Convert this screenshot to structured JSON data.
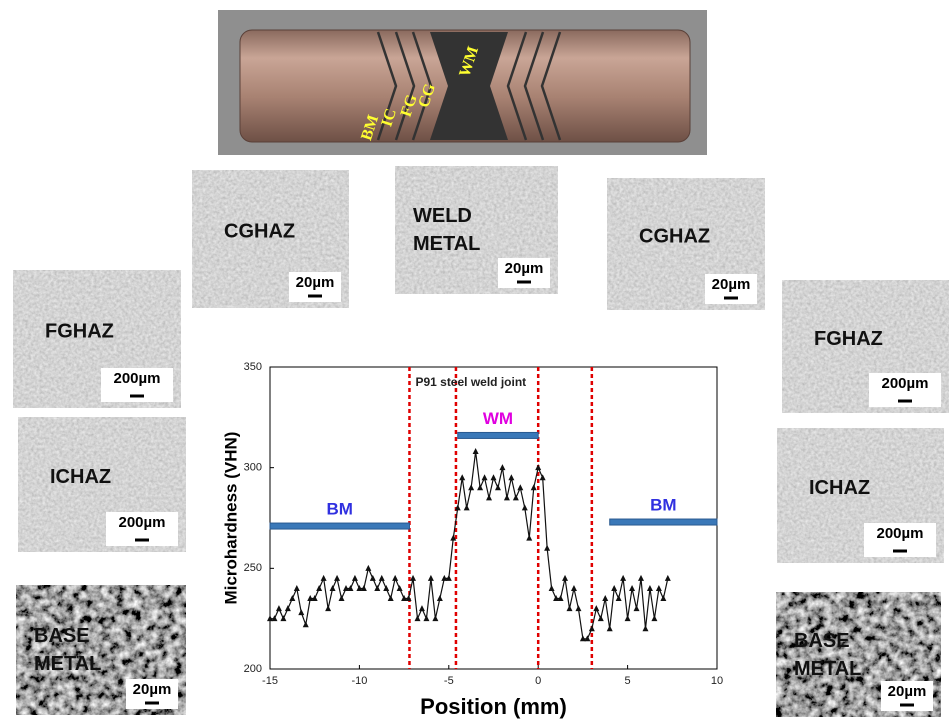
{
  "diagram": {
    "labels": [
      "BM",
      "IC",
      "FG",
      "CG",
      "WM"
    ]
  },
  "panels": [
    {
      "label": "CGHAZ",
      "scale": "20µm"
    },
    {
      "label": "WELD METAL",
      "scale": "20µm"
    },
    {
      "label": "CGHAZ",
      "scale": "20µm"
    },
    {
      "label": "FGHAZ",
      "scale": "200µm"
    },
    {
      "label": "ICHAZ",
      "scale": "200µm"
    },
    {
      "label": "BASE METAL",
      "scale": "20µm"
    },
    {
      "label": "FGHAZ",
      "scale": "200µm"
    },
    {
      "label": "ICHAZ",
      "scale": "200µm"
    },
    {
      "label": "BASE METAL",
      "scale": "20µm"
    }
  ],
  "chart_data": {
    "type": "line",
    "annotation": "P91 steel weld joint",
    "x_label": "Position (mm)",
    "y_label": "Microhardness (VHN)",
    "xlim": [
      -15,
      10
    ],
    "xticks": [
      -15,
      -10,
      -5,
      0,
      5,
      10
    ],
    "ylim": [
      200,
      350
    ],
    "yticks": [
      200,
      250,
      300,
      350
    ],
    "vlines": [
      -7.2,
      -4.6,
      0,
      3
    ],
    "vline_color": "#e00000",
    "regions": [
      {
        "label": "BM",
        "x": [
          -15,
          -7.2
        ],
        "y": 271,
        "label_color": "#3030e0"
      },
      {
        "label": "WM",
        "x": [
          -4.5,
          0
        ],
        "y": 316,
        "label_color": "#e000e0"
      },
      {
        "label": "BM",
        "x": [
          4,
          10
        ],
        "y": 273,
        "label_color": "#3030e0"
      }
    ],
    "region_color": "#3a78b8",
    "series": [
      {
        "color": "#111111",
        "x": [
          -15,
          -14.75,
          -14.5,
          -14.25,
          -14,
          -13.75,
          -13.5,
          -13.25,
          -13,
          -12.75,
          -12.5,
          -12.25,
          -12,
          -11.75,
          -11.5,
          -11.25,
          -11,
          -10.75,
          -10.5,
          -10.25,
          -10,
          -9.75,
          -9.5,
          -9.25,
          -9,
          -8.75,
          -8.5,
          -8.25,
          -8,
          -7.75,
          -7.5,
          -7.25,
          -7,
          -6.75,
          -6.5,
          -6.25,
          -6,
          -5.75,
          -5.5,
          -5.25,
          -5,
          -4.75,
          -4.5,
          -4.25,
          -4,
          -3.75,
          -3.5,
          -3.25,
          -3,
          -2.75,
          -2.5,
          -2.25,
          -2,
          -1.75,
          -1.5,
          -1.25,
          -1,
          -0.75,
          -0.5,
          -0.25,
          0,
          0.25,
          0.5,
          0.75,
          1,
          1.25,
          1.5,
          1.75,
          2,
          2.25,
          2.5,
          2.75,
          3,
          3.25,
          3.5,
          3.75,
          4,
          4.25,
          4.5,
          4.75,
          5,
          5.25,
          5.5,
          5.75,
          6,
          6.25,
          6.5,
          6.75,
          7,
          7.25
        ],
        "values": [
          225,
          225,
          230,
          225,
          230,
          235,
          240,
          228,
          222,
          235,
          235,
          240,
          245,
          230,
          240,
          245,
          235,
          240,
          240,
          245,
          240,
          240,
          250,
          245,
          240,
          245,
          240,
          235,
          245,
          240,
          235,
          235,
          245,
          225,
          230,
          225,
          245,
          225,
          235,
          245,
          245,
          265,
          280,
          295,
          280,
          290,
          308,
          290,
          295,
          285,
          295,
          290,
          300,
          285,
          295,
          285,
          290,
          280,
          265,
          290,
          300,
          295,
          260,
          240,
          235,
          235,
          245,
          230,
          240,
          230,
          215,
          215,
          220,
          230,
          225,
          235,
          220,
          240,
          235,
          245,
          225,
          240,
          230,
          245,
          220,
          240,
          225,
          240,
          235,
          245
        ]
      }
    ]
  }
}
